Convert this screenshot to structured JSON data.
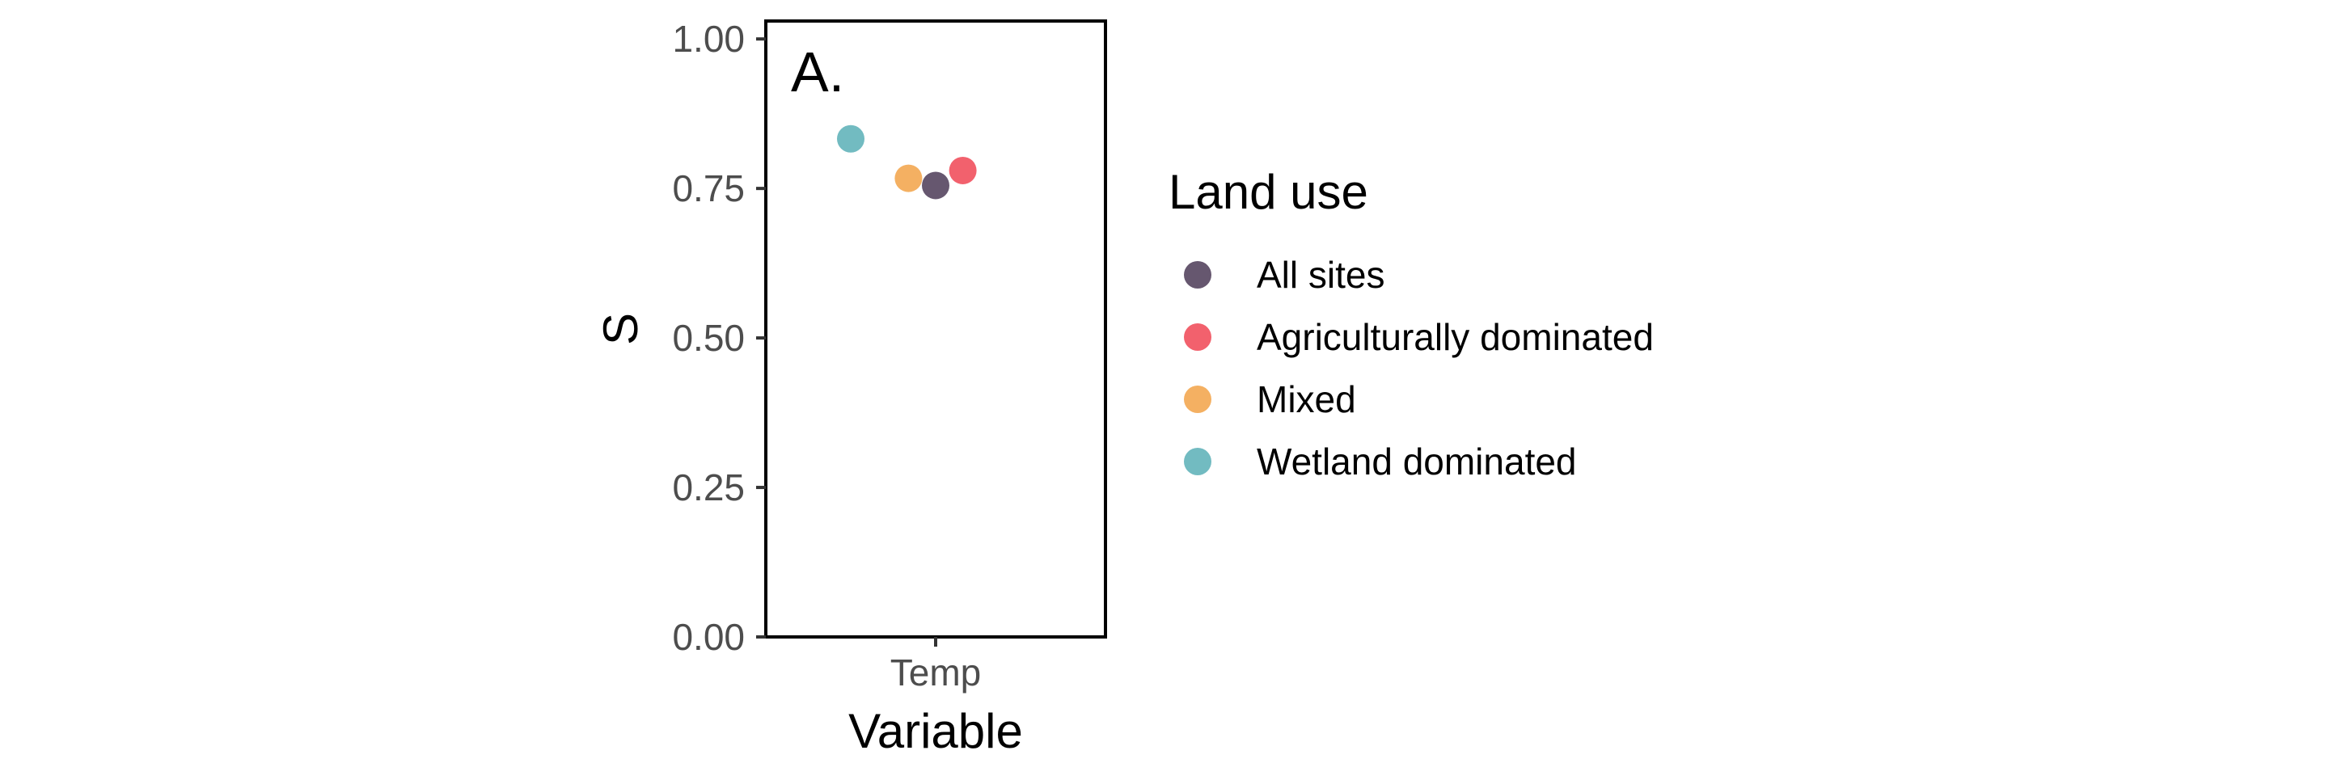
{
  "chart_data": {
    "type": "scatter",
    "panel_tag": "A.",
    "xlabel": "Variable",
    "ylabel": "S",
    "categories": [
      "Temp"
    ],
    "ylim": [
      0,
      1.03
    ],
    "yticks": [
      0.0,
      0.25,
      0.5,
      0.75,
      1.0
    ],
    "ytick_labels": [
      "0.00",
      "0.25",
      "0.50",
      "0.75",
      "1.00"
    ],
    "grid": false,
    "legend": {
      "title": "Land use",
      "placement": "right"
    },
    "series": [
      {
        "name": "All sites",
        "color": "#66576f",
        "category": "Temp",
        "x_offset": 0.0,
        "value": 0.755
      },
      {
        "name": "Agriculturally dominated",
        "color": "#f2616d",
        "category": "Temp",
        "x_offset": 0.08,
        "value": 0.78
      },
      {
        "name": "Mixed",
        "color": "#f4b062",
        "category": "Temp",
        "x_offset": -0.08,
        "value": 0.767
      },
      {
        "name": "Wetland dominated",
        "color": "#72bbc1",
        "category": "Temp",
        "x_offset": -0.25,
        "value": 0.833
      }
    ]
  }
}
